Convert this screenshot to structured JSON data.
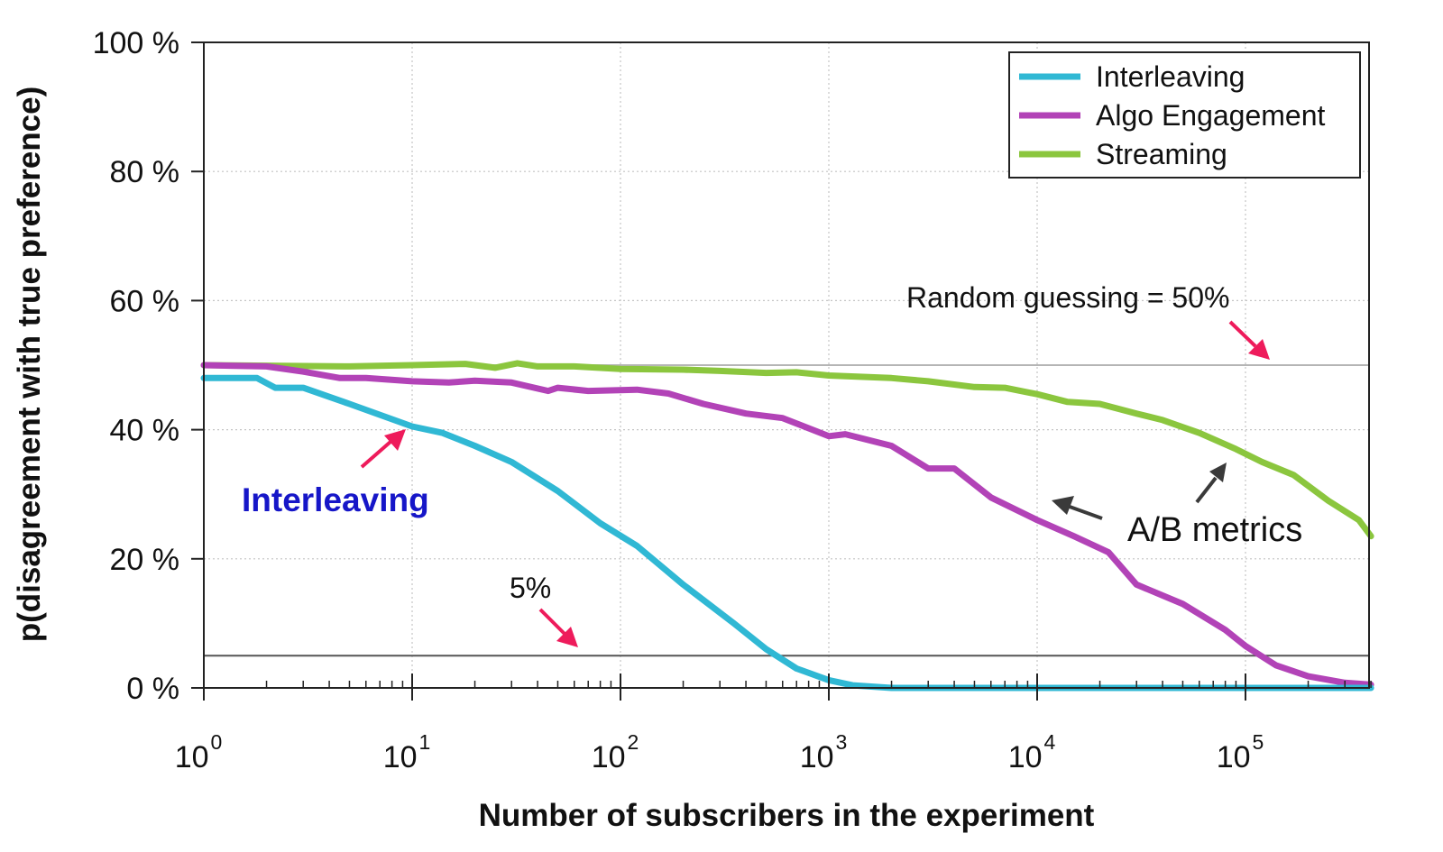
{
  "chart_data": {
    "type": "line",
    "title": "",
    "xlabel": "Number of subscribers in the experiment",
    "ylabel": "p(disagreement with true preference)",
    "x_scale": "log10",
    "xlim": [
      1,
      400000
    ],
    "ylim": [
      0,
      100
    ],
    "x_ticks": [
      {
        "base": "10",
        "exp": "0"
      },
      {
        "base": "10",
        "exp": "1"
      },
      {
        "base": "10",
        "exp": "2"
      },
      {
        "base": "10",
        "exp": "3"
      },
      {
        "base": "10",
        "exp": "4"
      },
      {
        "base": "10",
        "exp": "5"
      }
    ],
    "y_ticks": [
      "0 %",
      "20 %",
      "40 %",
      "60 %",
      "80 %",
      "100 %"
    ],
    "grid": true,
    "legend_position": "top-right",
    "series": [
      {
        "name": "Interleaving",
        "color": "#30b8d4",
        "points": [
          [
            1,
            48
          ],
          [
            1.8,
            48
          ],
          [
            2.2,
            46.5
          ],
          [
            3,
            46.5
          ],
          [
            5,
            44
          ],
          [
            10,
            40.5
          ],
          [
            14,
            39.5
          ],
          [
            20,
            37.5
          ],
          [
            30,
            35
          ],
          [
            50,
            30.5
          ],
          [
            80,
            25.5
          ],
          [
            120,
            22
          ],
          [
            200,
            16
          ],
          [
            350,
            10
          ],
          [
            500,
            6
          ],
          [
            700,
            3
          ],
          [
            1000,
            1.2
          ],
          [
            1300,
            0.4
          ],
          [
            2000,
            0
          ],
          [
            400000,
            0
          ]
        ]
      },
      {
        "name": "Algo Engagement",
        "color": "#b243b7",
        "points": [
          [
            1,
            50
          ],
          [
            2,
            49.8
          ],
          [
            3,
            49
          ],
          [
            4.5,
            48
          ],
          [
            6,
            48
          ],
          [
            10,
            47.5
          ],
          [
            15,
            47.3
          ],
          [
            20,
            47.6
          ],
          [
            30,
            47.3
          ],
          [
            45,
            46
          ],
          [
            50,
            46.5
          ],
          [
            70,
            46
          ],
          [
            120,
            46.2
          ],
          [
            170,
            45.6
          ],
          [
            250,
            44
          ],
          [
            400,
            42.5
          ],
          [
            600,
            41.8
          ],
          [
            1000,
            39
          ],
          [
            1200,
            39.3
          ],
          [
            2000,
            37.5
          ],
          [
            3000,
            34
          ],
          [
            4000,
            34
          ],
          [
            6000,
            29.5
          ],
          [
            10000,
            26
          ],
          [
            15000,
            23.5
          ],
          [
            22000,
            21
          ],
          [
            30000,
            16
          ],
          [
            50000,
            13
          ],
          [
            80000,
            9
          ],
          [
            100000,
            6.5
          ],
          [
            140000,
            3.5
          ],
          [
            200000,
            1.8
          ],
          [
            300000,
            0.8
          ],
          [
            400000,
            0.5
          ]
        ]
      },
      {
        "name": "Streaming",
        "color": "#8bc63e",
        "points": [
          [
            1,
            50
          ],
          [
            5,
            49.8
          ],
          [
            10,
            50
          ],
          [
            18,
            50.2
          ],
          [
            25,
            49.6
          ],
          [
            32,
            50.3
          ],
          [
            40,
            49.8
          ],
          [
            60,
            49.8
          ],
          [
            100,
            49.4
          ],
          [
            200,
            49.3
          ],
          [
            300,
            49.1
          ],
          [
            500,
            48.8
          ],
          [
            700,
            48.9
          ],
          [
            1000,
            48.4
          ],
          [
            2000,
            48
          ],
          [
            3000,
            47.5
          ],
          [
            5000,
            46.6
          ],
          [
            7000,
            46.5
          ],
          [
            10000,
            45.5
          ],
          [
            14000,
            44.3
          ],
          [
            20000,
            44
          ],
          [
            30000,
            42.5
          ],
          [
            40000,
            41.5
          ],
          [
            60000,
            39.5
          ],
          [
            90000,
            37
          ],
          [
            120000,
            35
          ],
          [
            170000,
            33
          ],
          [
            250000,
            29
          ],
          [
            350000,
            26
          ],
          [
            400000,
            23.5
          ]
        ]
      }
    ],
    "reference_lines": [
      {
        "name": "random-guessing",
        "y": 50,
        "color": "#b5b5b5"
      },
      {
        "name": "five-percent",
        "y": 5,
        "color": "#555555"
      }
    ],
    "annotations": {
      "random": "Random guessing = 50%",
      "five": "5%",
      "interleaving": "Interleaving",
      "ab": "A/B metrics"
    }
  }
}
